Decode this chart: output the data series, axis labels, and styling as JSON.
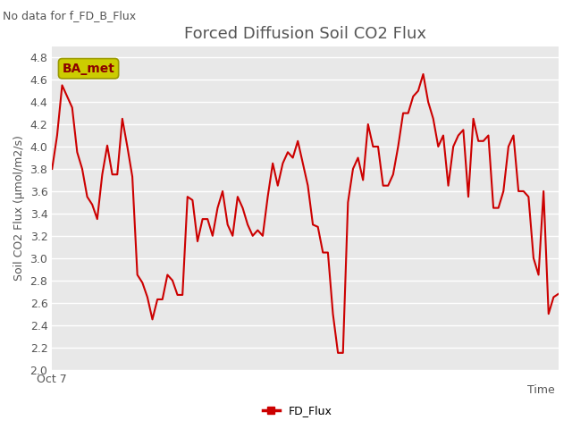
{
  "title": "Forced Diffusion Soil CO2 Flux",
  "top_left_note": "No data for f_FD_B_Flux",
  "xlabel": "Time",
  "ylabel": "Soil CO2 Flux (μmol/m2/s)",
  "xticklabels": [
    "Oct 7"
  ],
  "ylim": [
    2.0,
    4.9
  ],
  "yticks": [
    2.0,
    2.2,
    2.4,
    2.6,
    2.8,
    3.0,
    3.2,
    3.4,
    3.6,
    3.8,
    4.0,
    4.2,
    4.4,
    4.6,
    4.8
  ],
  "line_color": "#cc0000",
  "line_width": 1.5,
  "fig_bg_color": "#ffffff",
  "plot_bg_color": "#e8e8e8",
  "grid_color": "#ffffff",
  "legend_label": "FD_Flux",
  "ba_met_box_facecolor": "#cccc00",
  "ba_met_box_edgecolor": "#999900",
  "ba_met_text_color": "#8b0000",
  "title_color": "#555555",
  "note_color": "#555555",
  "ylabel_color": "#555555",
  "xlabel_color": "#555555",
  "tick_label_color": "#555555",
  "title_fontsize": 13,
  "note_fontsize": 9,
  "tick_fontsize": 9,
  "ylabel_fontsize": 9,
  "xlabel_fontsize": 9,
  "y_values": [
    3.8,
    4.1,
    4.55,
    4.45,
    4.35,
    3.95,
    3.8,
    3.55,
    3.48,
    3.35,
    3.75,
    4.01,
    3.75,
    3.75,
    4.25,
    4.0,
    3.73,
    2.85,
    2.78,
    2.65,
    2.45,
    2.63,
    2.63,
    2.85,
    2.8,
    2.67,
    2.67,
    3.55,
    3.52,
    3.15,
    3.35,
    3.35,
    3.2,
    3.45,
    3.6,
    3.3,
    3.2,
    3.55,
    3.45,
    3.3,
    3.2,
    3.25,
    3.2,
    3.55,
    3.85,
    3.65,
    3.85,
    3.95,
    3.9,
    4.05,
    3.85,
    3.65,
    3.3,
    3.28,
    3.05,
    3.05,
    2.5,
    2.15,
    2.15,
    3.5,
    3.8,
    3.9,
    3.7,
    4.2,
    4.0,
    4.0,
    3.65,
    3.65,
    3.75,
    4.0,
    4.3,
    4.3,
    4.45,
    4.5,
    4.65,
    4.4,
    4.25,
    4.0,
    4.1,
    3.65,
    4.0,
    4.1,
    4.15,
    3.55,
    4.25,
    4.05,
    4.05,
    4.1,
    3.45,
    3.45,
    3.6,
    4.0,
    4.1,
    3.6,
    3.6,
    3.55,
    3.0,
    2.85,
    3.6,
    2.5,
    2.65,
    2.68
  ]
}
